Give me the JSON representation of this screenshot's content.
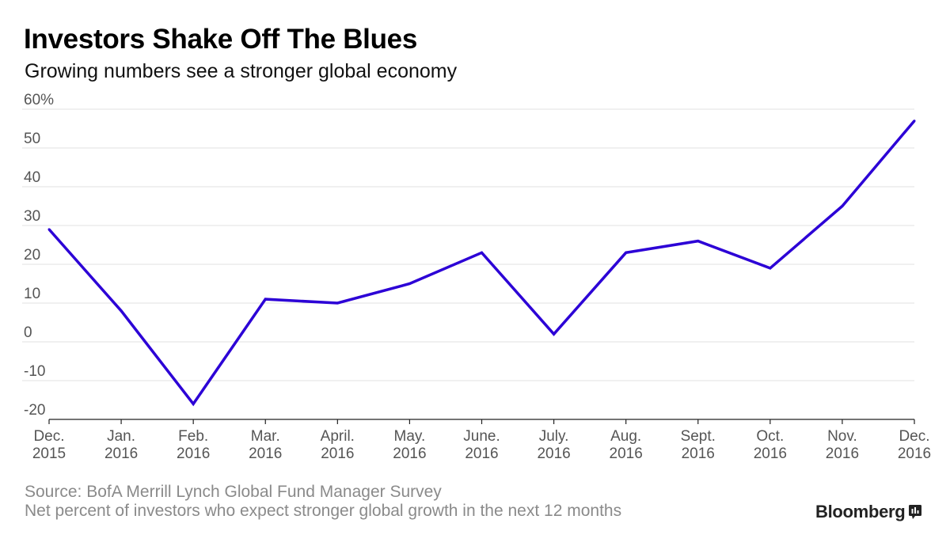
{
  "title": "Investors Shake Off The Blues",
  "subtitle": "Growing numbers see a stronger global economy",
  "footer": {
    "source": "Source: BofA Merrill Lynch Global Fund Manager Survey",
    "note": "Net percent of investors who expect stronger global growth in the next 12 months",
    "brand": "Bloomberg"
  },
  "colors": {
    "line": "#2c00d6",
    "grid": "#e2e2e2",
    "axis": "#222222"
  },
  "chart_data": {
    "type": "line",
    "title": "Investors Shake Off The Blues",
    "subtitle": "Growing numbers see a stronger global economy",
    "xlabel": "",
    "ylabel": "",
    "ylim": [
      -20,
      60
    ],
    "grid": true,
    "categories": [
      [
        "Dec.",
        "2015"
      ],
      [
        "Jan.",
        "2016"
      ],
      [
        "Feb.",
        "2016"
      ],
      [
        "Mar.",
        "2016"
      ],
      [
        "April.",
        "2016"
      ],
      [
        "May.",
        "2016"
      ],
      [
        "June.",
        "2016"
      ],
      [
        "July.",
        "2016"
      ],
      [
        "Aug.",
        "2016"
      ],
      [
        "Sept.",
        "2016"
      ],
      [
        "Oct.",
        "2016"
      ],
      [
        "Nov.",
        "2016"
      ],
      [
        "Dec.",
        "2016"
      ]
    ],
    "y_ticks": [
      {
        "value": 60,
        "label": "60%"
      },
      {
        "value": 50,
        "label": "50"
      },
      {
        "value": 40,
        "label": "40"
      },
      {
        "value": 30,
        "label": "30"
      },
      {
        "value": 20,
        "label": "20"
      },
      {
        "value": 10,
        "label": "10"
      },
      {
        "value": 0,
        "label": "0"
      },
      {
        "value": -10,
        "label": "-10"
      },
      {
        "value": -20,
        "label": "-20"
      }
    ],
    "series": [
      {
        "values": [
          29,
          8,
          -16,
          11,
          10,
          15,
          23,
          2,
          23,
          26,
          19,
          35,
          57
        ]
      }
    ]
  }
}
